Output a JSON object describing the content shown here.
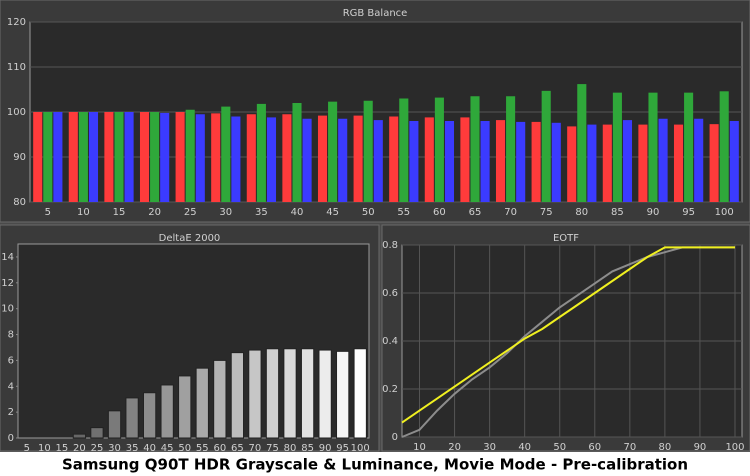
{
  "chart_data": [
    {
      "type": "bar",
      "title": "RGB Balance",
      "categories": [
        "5",
        "10",
        "15",
        "20",
        "25",
        "30",
        "35",
        "40",
        "45",
        "50",
        "55",
        "60",
        "65",
        "70",
        "75",
        "80",
        "85",
        "90",
        "95",
        "100"
      ],
      "series": [
        {
          "color": "#ff3b3b",
          "values": [
            100,
            100,
            100,
            100,
            100,
            99.7,
            99.5,
            99.5,
            99.2,
            99.2,
            99,
            98.8,
            98.8,
            98.2,
            97.8,
            96.8,
            97.2,
            97.2,
            97.2,
            97.3
          ]
        },
        {
          "color": "#2fa83a",
          "values": [
            100,
            100,
            100,
            100,
            100.5,
            101.2,
            101.8,
            102,
            102.3,
            102.5,
            103,
            103.2,
            103.5,
            103.5,
            104.7,
            106.2,
            104.3,
            104.3,
            104.3,
            104.6
          ]
        },
        {
          "color": "#3b3bff",
          "values": [
            100,
            100,
            100,
            99.8,
            99.5,
            99,
            98.8,
            98.5,
            98.5,
            98.2,
            98,
            98,
            98,
            97.8,
            97.6,
            97.2,
            98.2,
            98.5,
            98.5,
            98
          ]
        }
      ],
      "ylim": [
        80,
        120
      ],
      "yticks": [
        80,
        90,
        100,
        110,
        120
      ],
      "grid": true
    },
    {
      "type": "bar",
      "title": "DeltaE 2000",
      "categories": [
        "5",
        "10",
        "15",
        "20",
        "25",
        "30",
        "35",
        "40",
        "45",
        "50",
        "55",
        "60",
        "65",
        "70",
        "75",
        "80",
        "85",
        "90",
        "95",
        "100"
      ],
      "values": [
        0,
        0,
        0,
        0.3,
        0.8,
        2.1,
        3.1,
        3.5,
        4.1,
        4.8,
        5.4,
        6.0,
        6.6,
        6.8,
        6.9,
        6.9,
        6.9,
        6.8,
        6.7,
        6.9
      ],
      "color_range": [
        "#4a4a4a",
        "#ffffff"
      ],
      "ylim": [
        0,
        15
      ],
      "yticks": [
        0,
        2,
        4,
        6,
        8,
        10,
        12,
        14
      ],
      "grid": false
    },
    {
      "type": "line",
      "title": "EOTF",
      "x": [
        5,
        10,
        15,
        20,
        25,
        30,
        35,
        40,
        45,
        50,
        55,
        60,
        65,
        70,
        75,
        80,
        85,
        90,
        95,
        100
      ],
      "series": [
        {
          "color": "#8c8c8c",
          "values": [
            0,
            0.03,
            0.11,
            0.18,
            0.24,
            0.29,
            0.35,
            0.42,
            0.48,
            0.54,
            0.59,
            0.64,
            0.69,
            0.72,
            0.75,
            0.77,
            0.79,
            0.79,
            0.79,
            0.79
          ]
        },
        {
          "color": "#f0f020",
          "values": [
            0.06,
            0.11,
            0.16,
            0.21,
            0.26,
            0.31,
            0.36,
            0.41,
            0.45,
            0.5,
            0.55,
            0.6,
            0.65,
            0.7,
            0.75,
            0.79,
            0.79,
            0.79,
            0.79,
            0.79
          ]
        }
      ],
      "xlim": [
        5,
        102
      ],
      "xticks": [
        10,
        20,
        30,
        40,
        50,
        60,
        70,
        80,
        90,
        100
      ],
      "ylim": [
        0,
        0.8
      ],
      "yticks": [
        0,
        0.2,
        0.4,
        0.6,
        0.8
      ],
      "grid": true
    }
  ],
  "caption": "Samsung Q90T HDR Grayscale & Luminance, Movie Mode - Pre-calibration"
}
